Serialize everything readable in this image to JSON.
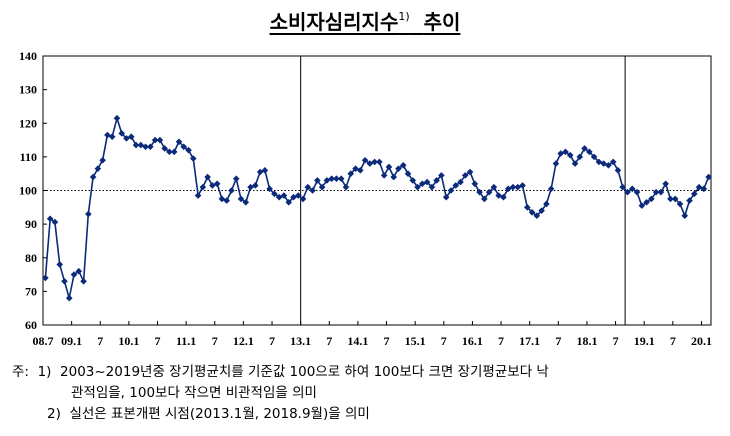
{
  "title": {
    "text": "소비자심리지수",
    "footnote_mark": "1)",
    "suffix": "추이"
  },
  "notes": {
    "prefix": "주:",
    "note1_number": "1)",
    "note1_line1": "2003~2019년중 장기평균치를 기준값 100으로 하여 100보다 크면 장기평균보다 낙",
    "note1_line2": "관적임을, 100보다 작으면 비관적임을 의미",
    "note2_number": "2)",
    "note2_text": "실선은 표본개편 시점(2013.1월, 2018.9월)을 의미"
  },
  "chart_data": {
    "type": "line",
    "title": "소비자심리지수 추이",
    "xlabel": "",
    "ylabel": "",
    "ylim": [
      60,
      140
    ],
    "yticks": [
      60,
      70,
      80,
      90,
      100,
      110,
      120,
      130,
      140
    ],
    "x_start": "2008.7",
    "x_end": "2020.1",
    "x_tick_labels": [
      {
        "label": "08.7",
        "index": 0
      },
      {
        "label": "09.1",
        "index": 6
      },
      {
        "label": "7",
        "index": 12
      },
      {
        "label": "10.1",
        "index": 18
      },
      {
        "label": "7",
        "index": 24
      },
      {
        "label": "11.1",
        "index": 30
      },
      {
        "label": "7",
        "index": 36
      },
      {
        "label": "12.1",
        "index": 42
      },
      {
        "label": "7",
        "index": 48
      },
      {
        "label": "13.1",
        "index": 54
      },
      {
        "label": "7",
        "index": 60
      },
      {
        "label": "14.1",
        "index": 66
      },
      {
        "label": "7",
        "index": 72
      },
      {
        "label": "15.1",
        "index": 78
      },
      {
        "label": "7",
        "index": 84
      },
      {
        "label": "16.1",
        "index": 90
      },
      {
        "label": "7",
        "index": 96
      },
      {
        "label": "17.1",
        "index": 102
      },
      {
        "label": "7",
        "index": 108
      },
      {
        "label": "18.1",
        "index": 114
      },
      {
        "label": "7",
        "index": 120
      },
      {
        "label": "19.1",
        "index": 126
      },
      {
        "label": "7",
        "index": 132
      },
      {
        "label": "20.1",
        "index": 138
      }
    ],
    "reference_line": {
      "y": 100,
      "style": "dotted"
    },
    "vertical_lines": [
      "2013.1",
      "2018.9"
    ],
    "series": [
      {
        "color": "#0b2a7a",
        "values": [
          74,
          91.6,
          90.6,
          78,
          73,
          68,
          75,
          76,
          73,
          93,
          104,
          106.5,
          109,
          116.5,
          116,
          121.5,
          117,
          115.5,
          116,
          113.5,
          113.5,
          113,
          113,
          115,
          115,
          112.5,
          111.5,
          111.5,
          114.5,
          113,
          112,
          109.5,
          98.5,
          101,
          104,
          101.5,
          102,
          97.5,
          97,
          100,
          103.5,
          97.5,
          96.5,
          101,
          101.5,
          105.5,
          106,
          100.5,
          99,
          98,
          98.5,
          96.5,
          98,
          98.5,
          97.5,
          101,
          100,
          103,
          101,
          103,
          103.5,
          103.5,
          103.5,
          101,
          105,
          106.5,
          106,
          109,
          108,
          108.5,
          108.5,
          104.5,
          107,
          104,
          106.5,
          107.5,
          105,
          103,
          101,
          102,
          102.5,
          101,
          103,
          104.5,
          98,
          100,
          101.5,
          102.5,
          104.5,
          105.5,
          102,
          99.5,
          97.5,
          99.5,
          101,
          98.5,
          98,
          100.5,
          101,
          101,
          101.5,
          95,
          93.5,
          92.5,
          94,
          96,
          100.5,
          108,
          111,
          111.5,
          110.5,
          108,
          110,
          112.5,
          111.5,
          110,
          108.5,
          108,
          107.5,
          108.5,
          106,
          101,
          99.5,
          100.5,
          99.5,
          95.5,
          96.5,
          97.5,
          99.5,
          99.5,
          102,
          97.5,
          97.5,
          96,
          92.5,
          97,
          99,
          101,
          100.5,
          104
        ]
      }
    ]
  }
}
